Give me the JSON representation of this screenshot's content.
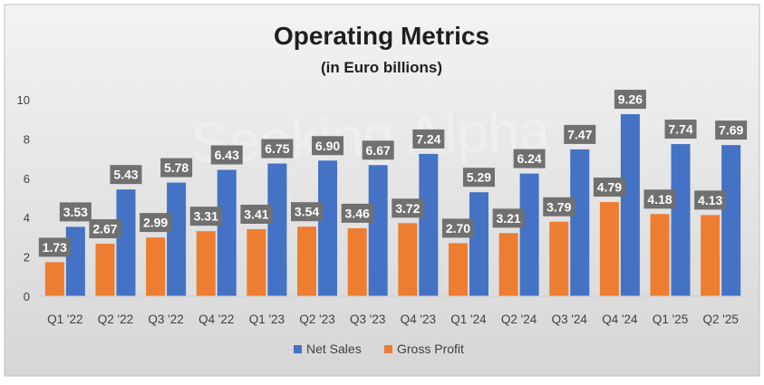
{
  "watermark": "Seeking Alpha",
  "chart_data": {
    "type": "bar",
    "title": "Operating Metrics",
    "subtitle": "(in Euro billions)",
    "xlabel": "",
    "ylabel": "",
    "ylim": [
      0,
      10
    ],
    "yticks": [
      0,
      2,
      4,
      6,
      8,
      10
    ],
    "grid": false,
    "legend_position": "bottom",
    "categories": [
      "Q1 '22",
      "Q2 '22",
      "Q3 '22",
      "Q4 '22",
      "Q1 '23",
      "Q2 '23",
      "Q3 '23",
      "Q4 '23",
      "Q1 '24",
      "Q2 '24",
      "Q3 '24",
      "Q4 '24",
      "Q1 '25",
      "Q2 '25"
    ],
    "series": [
      {
        "name": "Gross Profit",
        "color": "#ed7d31",
        "values": [
          1.73,
          2.67,
          2.99,
          3.31,
          3.41,
          3.54,
          3.46,
          3.72,
          2.7,
          3.21,
          3.79,
          4.79,
          4.18,
          4.13
        ],
        "labels": [
          "1.73",
          "2.67",
          "2.99",
          "3.31",
          "3.41",
          "3.54",
          "3.46",
          "3.72",
          "2.70",
          "3.21",
          "3.79",
          "4.79",
          "4.18",
          "4.13"
        ]
      },
      {
        "name": "Net Sales",
        "color": "#4472c4",
        "values": [
          3.53,
          5.43,
          5.78,
          6.43,
          6.75,
          6.9,
          6.67,
          7.24,
          5.29,
          6.24,
          7.47,
          9.26,
          7.74,
          7.69
        ],
        "labels": [
          "3.53",
          "5.43",
          "5.78",
          "6.43",
          "6.75",
          "6.90",
          "6.67",
          "7.24",
          "5.29",
          "6.24",
          "7.47",
          "9.26",
          "7.74",
          "7.69"
        ]
      }
    ],
    "legend_order": [
      "Net Sales",
      "Gross Profit"
    ],
    "label_box_color": "#707070"
  }
}
